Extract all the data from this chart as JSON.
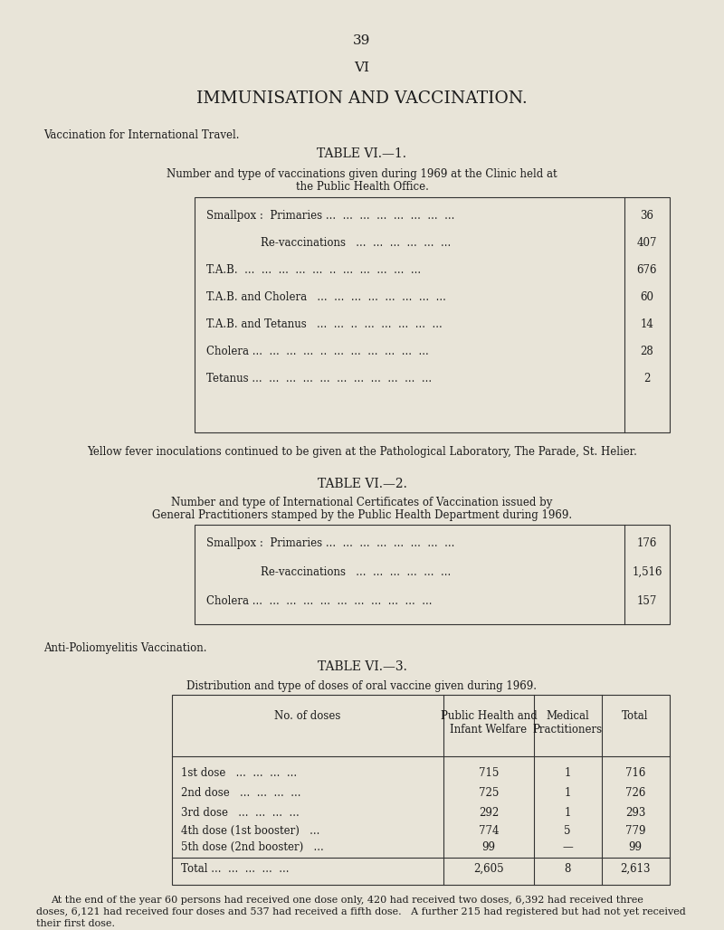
{
  "page_number": "39",
  "section_number": "VI",
  "main_title": "IMMUNISATION AND VACCINATION.",
  "subsection1_title": "Vaccination for International Travel.",
  "table1_title": "TABLE VI.—1.",
  "table1_desc1": "Number and type of vaccinations given during 1969 at the Clinic held at",
  "table1_desc2": "the Public Health Office.",
  "table1_rows": [
    [
      "Smallpox :  Primaries ...  ...  ...  ...  ...  ...  ...  ...",
      "36"
    ],
    [
      "                Re-vaccinations   ...  ...  ...  ...  ...  ...",
      "407"
    ],
    [
      "T.A.B.  ...  ...  ...  ...  ...  ..  ...  ...  ...  ...  ...",
      "676"
    ],
    [
      "T.A.B. and Cholera   ...  ...  ...  ...  ...  ...  ...  ...",
      "60"
    ],
    [
      "T.A.B. and Tetanus   ...  ...  ..  ...  ...  ...  ...  ...",
      "14"
    ],
    [
      "Cholera ...  ...  ...  ...  ..  ...  ...  ...  ...  ...  ...",
      "28"
    ],
    [
      "Tetanus ...  ...  ...  ...  ...  ...  ...  ...  ...  ...  ...",
      "2"
    ]
  ],
  "yellow_fever_note": "Yellow fever inoculations continued to be given at the Pathological Laboratory, The Parade, St. Helier.",
  "table2_title": "TABLE VI.—2.",
  "table2_desc1": "Number and type of International Certificates of Vaccination issued by",
  "table2_desc2": "General Practitioners stamped by the Public Health Department during 1969.",
  "table2_rows": [
    [
      "Smallpox :  Primaries ...  ...  ...  ...  ...  ...  ...  ...",
      "176"
    ],
    [
      "                Re-vaccinations   ...  ...  ...  ...  ...  ...",
      "1,516"
    ],
    [
      "Cholera ...  ...  ...  ...  ...  ...  ...  ...  ...  ...  ...",
      "157"
    ]
  ],
  "subsection2_title": "Anti-Poliomyelitis Vaccination.",
  "table3_title": "TABLE VI.—3.",
  "table3_desc": "Distribution and type of doses of oral vaccine given during 1969.",
  "table3_col0_header": "No. of doses",
  "table3_col1_header": "Public Health and\nInfant Welfare",
  "table3_col2_header": "Medical\nPractitioners",
  "table3_col3_header": "Total",
  "table3_rows": [
    [
      "1st dose   ...  ...  ...  ...",
      "715",
      "1",
      "716"
    ],
    [
      "2nd dose   ...  ...  ...  ...",
      "725",
      "1",
      "726"
    ],
    [
      "3rd dose   ...  ...  ...  ...",
      "292",
      "1",
      "293"
    ],
    [
      "4th dose (1st booster)   ...",
      "774",
      "5",
      "779"
    ],
    [
      "5th dose (2nd booster)   ...",
      "99",
      "—",
      "99"
    ]
  ],
  "table3_total": [
    "Total ...  ...  ...  ...  ...",
    "2,605",
    "8",
    "2,613"
  ],
  "footer_line1": "At the end of the year 60 persons had received one dose only, 420 had received two doses, 6,392 had received three",
  "footer_line2": "doses, 6,121 had received four doses and 537 had received a fifth dose.   A further 215 had registered but had not yet received",
  "footer_line3": "their first dose.",
  "bg_color": "#e8e4d8",
  "text_color": "#1c1c1c",
  "line_color": "#333333"
}
